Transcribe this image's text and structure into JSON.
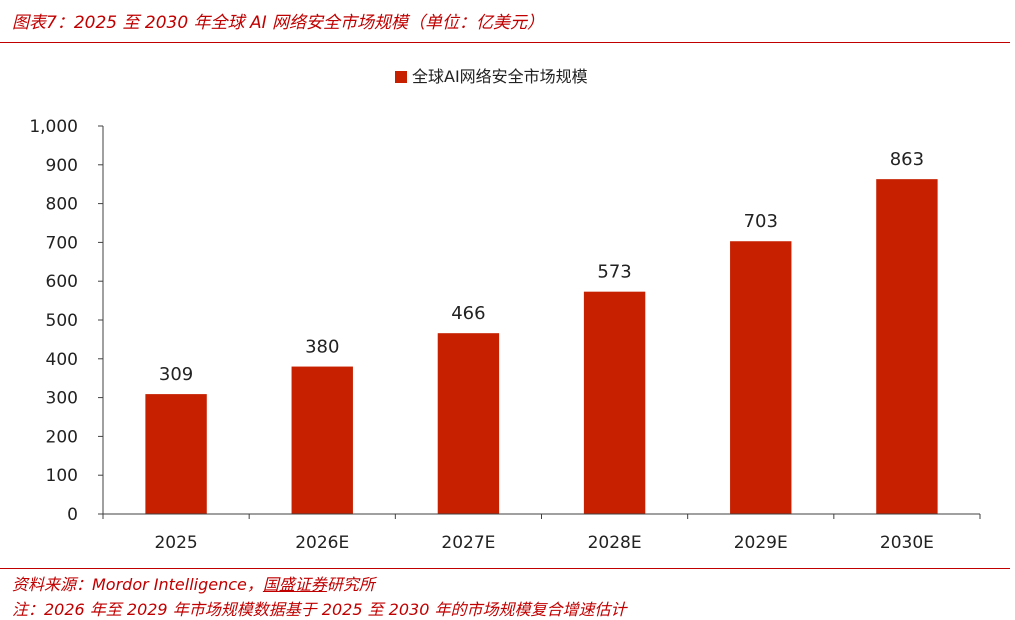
{
  "header": {
    "title": "图表7：2025 至 2030 年全球 AI 网络安全市场规模（单位：亿美元）"
  },
  "footer": {
    "source_prefix": "资料来源：Mordor Intelligence，",
    "source_link": "国盛证券",
    "source_suffix": "研究所",
    "note": "注：2026 年至 2029 年市场规模数据基于 2025 至 2030 年的市场规模复合增速估计"
  },
  "colors": {
    "accent": "#c00000",
    "bar": "#c62000",
    "axis": "#404040",
    "text": "#222222"
  },
  "chart_data": {
    "type": "bar",
    "title": "",
    "xlabel": "",
    "ylabel": "",
    "categories": [
      "2025",
      "2026E",
      "2027E",
      "2028E",
      "2029E",
      "2030E"
    ],
    "series": [
      {
        "name": "全球AI网络安全市场规模",
        "values": [
          309,
          380,
          466,
          573,
          703,
          863
        ]
      }
    ],
    "ylim": [
      0,
      1000
    ],
    "yticks": [
      "0",
      "100",
      "200",
      "300",
      "400",
      "500",
      "600",
      "700",
      "800",
      "900",
      "1,000"
    ],
    "data_labels": [
      "309",
      "380",
      "466",
      "573",
      "703",
      "863"
    ],
    "legend_position": "top-center",
    "grid": false
  }
}
